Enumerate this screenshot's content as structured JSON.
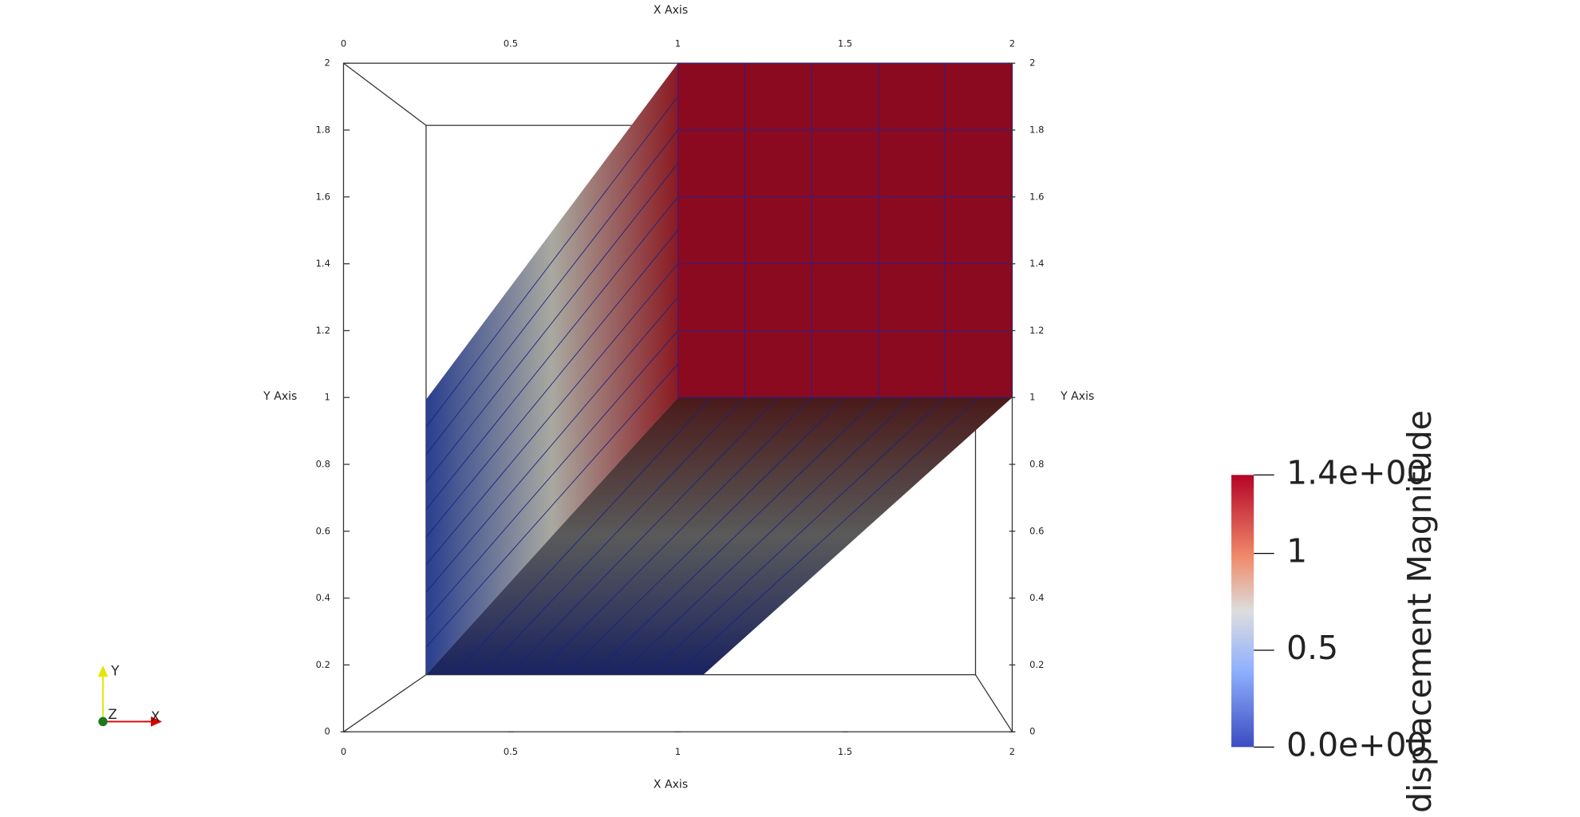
{
  "x_axis": {
    "title": "X Axis",
    "ticks": [
      "0",
      "0.5",
      "1",
      "1.5",
      "2"
    ]
  },
  "y_axis": {
    "title": "Y Axis",
    "ticks": [
      "0",
      "0.2",
      "0.4",
      "0.6",
      "0.8",
      "1",
      "1.2",
      "1.4",
      "1.6",
      "1.8",
      "2"
    ]
  },
  "colorbar": {
    "title": "displacement Magnitude",
    "labels": [
      "1.4e+00",
      "1",
      "0.5",
      "0.0e+00"
    ]
  },
  "orientation": {
    "labels": [
      "Y",
      "Z",
      "X"
    ]
  }
}
